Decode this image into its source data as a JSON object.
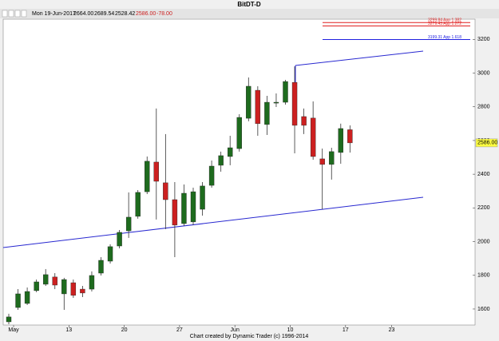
{
  "chart_data": {
    "type": "candlestick",
    "title": "BitDT-D",
    "info": {
      "date": "Mon 19-Jun-2017",
      "open": "2664.00",
      "high": "2689.54",
      "low": "2528.42",
      "close": "2586.00",
      "change": "-78.00"
    },
    "footer": "Chart created by Dynamic Trader  (c) 1996-2014",
    "categories": [
      "May",
      null,
      null,
      null,
      null,
      null,
      "13",
      null,
      null,
      null,
      null,
      null,
      "20",
      null,
      null,
      null,
      null,
      null,
      "27",
      null,
      null,
      null,
      null,
      null,
      "Jun",
      null,
      null,
      null,
      null,
      null,
      "10",
      null,
      null,
      null,
      null,
      null,
      "17",
      null,
      null,
      null,
      null,
      "23",
      null,
      null,
      null,
      null,
      null,
      null,
      null,
      null,
      null
    ],
    "open": [
      1524,
      1609,
      1633,
      1709,
      1747,
      1790,
      1690,
      1756,
      1718,
      1718,
      1813,
      1884,
      1974,
      2064,
      2150,
      2296,
      2472,
      2349,
      2249,
      2107,
      2117,
      2192,
      2334,
      2453,
      2505,
      2552,
      2732,
      2898,
      2695,
      2822,
      2827,
      2945,
      2742,
      2733,
      2491,
      2458,
      2529,
      2664,
      null,
      null,
      null,
      null,
      null,
      null,
      null,
      null,
      null,
      null,
      null,
      null,
      null
    ],
    "high": [
      1572,
      1718,
      1728,
      1775,
      1837,
      1813,
      1785,
      1775,
      1737,
      1823,
      1908,
      1984,
      2069,
      2292,
      2306,
      2505,
      2790,
      2638,
      2353,
      2339,
      2320,
      2353,
      2481,
      2534,
      2628,
      2756,
      2974,
      2922,
      2865,
      2879,
      2960,
      3040,
      2790,
      2832,
      2552,
      2557,
      2700,
      2689.54,
      null,
      null,
      null,
      null,
      null,
      null,
      null,
      null,
      null,
      null,
      null,
      null,
      null
    ],
    "low": [
      1510,
      1595,
      1624,
      1700,
      1737,
      1718,
      1595,
      1666,
      1671,
      1704,
      1799,
      1870,
      1960,
      2022,
      2136,
      2282,
      2131,
      2074,
      1908,
      2093,
      2098,
      2154,
      2320,
      2415,
      2453,
      2534,
      2714,
      2628,
      2633,
      2799,
      2813,
      2524,
      2638,
      2486,
      2192,
      2368,
      2462,
      2528.42,
      null,
      null,
      null,
      null,
      null,
      null,
      null,
      null,
      null,
      null,
      null,
      null,
      null
    ],
    "close": [
      1553,
      1690,
      1704,
      1761,
      1804,
      1742,
      1775,
      1681,
      1695,
      1799,
      1889,
      1970,
      2055,
      2145,
      2292,
      2477,
      2358,
      2249,
      2098,
      2287,
      2296,
      2330,
      2448,
      2510,
      2557,
      2737,
      2922,
      2700,
      2827,
      2827,
      2950,
      2690,
      2690,
      2505,
      2458,
      2534,
      2671,
      2586,
      null,
      null,
      null,
      null,
      null,
      null,
      null,
      null,
      null,
      null,
      null,
      null,
      null
    ],
    "up_color": "#1e6b1e",
    "down_color": "#cc2020",
    "ylim": [
      1505,
      3320
    ],
    "yticks": [
      1600,
      1800,
      2000,
      2200,
      2400,
      2600,
      2800,
      3000,
      3200
    ],
    "grid": false,
    "levels": [
      {
        "value": 3299.84,
        "label": "3299.84 App 1.382",
        "color": "#e02020"
      },
      {
        "value": 3279.43,
        "label": "3279.43 App 1.272",
        "color": "#e02020"
      },
      {
        "value": 3199.31,
        "label": "3199.31 App 1.618",
        "color": "#2020e0"
      }
    ],
    "last_price": {
      "value": 2586,
      "label": "2586.00"
    }
  }
}
